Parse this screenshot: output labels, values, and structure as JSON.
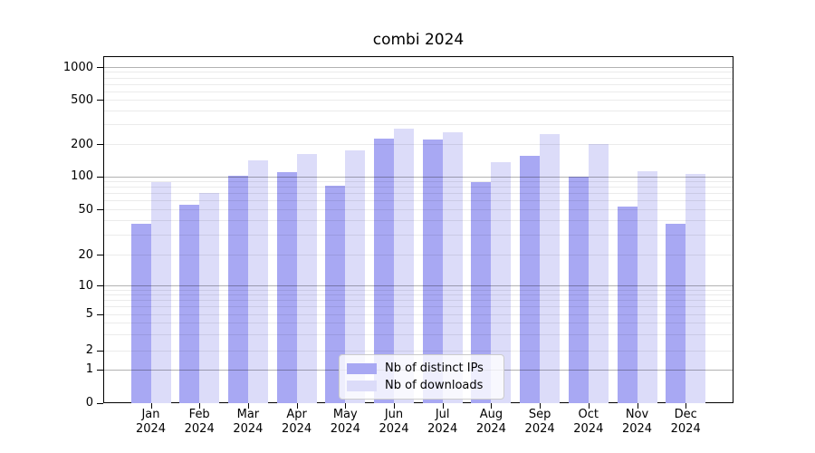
{
  "title": "combi 2024",
  "chart_data": {
    "type": "bar",
    "title": "combi 2024",
    "categories": [
      "Jan 2024",
      "Feb 2024",
      "Mar 2024",
      "Apr 2024",
      "May 2024",
      "Jun 2024",
      "Jul 2024",
      "Aug 2024",
      "Sep 2024",
      "Oct 2024",
      "Nov 2024",
      "Dec 2024"
    ],
    "series": [
      {
        "name": "Nb of distinct IPs",
        "color": "#a8a8f3",
        "values": [
          37,
          55,
          102,
          109,
          82,
          225,
          220,
          88,
          155,
          99,
          53,
          37
        ]
      },
      {
        "name": "Nb of downloads",
        "color": "#dcdcf9",
        "values": [
          88,
          70,
          140,
          160,
          175,
          275,
          257,
          135,
          245,
          200,
          112,
          105
        ]
      }
    ],
    "xlabel": "",
    "ylabel": "",
    "yscale": "symlog",
    "yticks": [
      0,
      1,
      2,
      5,
      10,
      20,
      50,
      100,
      200,
      500,
      1000
    ],
    "ylim": [
      0,
      1100
    ],
    "grid": true,
    "legend_position": "lower center"
  },
  "legend": {
    "entries": [
      {
        "label": "Nb of distinct IPs",
        "color": "#a8a8f3"
      },
      {
        "label": "Nb of downloads",
        "color": "#dcdcf9"
      }
    ]
  },
  "colors": {
    "ips_bar": "#a8a8f3",
    "downloads_bar": "#dcdcf9",
    "axis": "#000000",
    "major_grid": "#b3b3b3",
    "minor_grid": "#ebebeb"
  }
}
